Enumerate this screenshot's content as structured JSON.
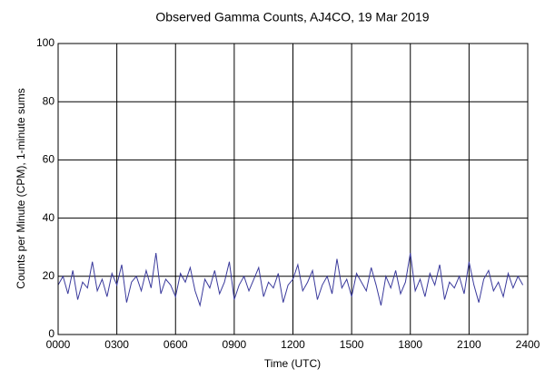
{
  "chart_data": {
    "type": "line",
    "title": "Observed Gamma Counts, AJ4CO, 19 Mar 2019",
    "x_label": "Time (UTC)",
    "y_label": "Counts per Minute (CPM), 1-minute sums",
    "x": [
      0,
      0.25,
      0.5,
      0.75,
      1,
      1.25,
      1.5,
      1.75,
      2,
      2.25,
      2.5,
      2.75,
      3,
      3.25,
      3.5,
      3.75,
      4,
      4.25,
      4.5,
      4.75,
      5,
      5.25,
      5.5,
      5.75,
      6,
      6.25,
      6.5,
      6.75,
      7,
      7.25,
      7.5,
      7.75,
      8,
      8.25,
      8.5,
      8.75,
      9,
      9.25,
      9.5,
      9.75,
      10,
      10.25,
      10.5,
      10.75,
      11,
      11.25,
      11.5,
      11.75,
      12,
      12.25,
      12.5,
      12.75,
      13,
      13.25,
      13.5,
      13.75,
      14,
      14.25,
      14.5,
      14.75,
      15,
      15.25,
      15.5,
      15.75,
      16,
      16.25,
      16.5,
      16.75,
      17,
      17.25,
      17.5,
      17.75,
      18,
      18.25,
      18.5,
      18.75,
      19,
      19.25,
      19.5,
      19.75,
      20,
      20.25,
      20.5,
      20.75,
      21,
      21.25,
      21.5,
      21.75,
      22,
      22.25,
      22.5,
      22.75,
      23,
      23.25,
      23.5,
      23.75
    ],
    "series": [
      {
        "name": "CPM",
        "color": "#3a3a9c",
        "values": [
          17,
          20,
          14,
          22,
          12,
          18,
          16,
          25,
          15,
          19,
          13,
          21,
          17,
          24,
          11,
          18,
          20,
          15,
          22,
          16,
          28,
          14,
          19,
          17,
          13,
          21,
          18,
          23,
          15,
          10,
          19,
          16,
          22,
          14,
          18,
          25,
          12,
          17,
          20,
          15,
          19,
          23,
          13,
          18,
          16,
          21,
          11,
          17,
          19,
          24,
          15,
          18,
          22,
          12,
          17,
          20,
          14,
          26,
          16,
          19,
          13,
          21,
          18,
          15,
          23,
          17,
          10,
          20,
          16,
          22,
          14,
          18,
          28,
          15,
          19,
          13,
          21,
          17,
          24,
          12,
          18,
          16,
          20,
          14,
          25,
          17,
          11,
          19,
          22,
          15,
          18,
          13,
          21,
          16,
          20,
          17
        ]
      }
    ],
    "xlim": [
      0,
      24
    ],
    "xticks": [
      {
        "value": 0,
        "label": "0000"
      },
      {
        "value": 3,
        "label": "0300"
      },
      {
        "value": 6,
        "label": "0600"
      },
      {
        "value": 9,
        "label": "0900"
      },
      {
        "value": 12,
        "label": "1200"
      },
      {
        "value": 15,
        "label": "1500"
      },
      {
        "value": 18,
        "label": "1800"
      },
      {
        "value": 21,
        "label": "2100"
      },
      {
        "value": 24,
        "label": "2400"
      }
    ],
    "ylim": [
      0,
      100
    ],
    "yticks": [
      0,
      20,
      40,
      60,
      80,
      100
    ],
    "grid": true
  }
}
